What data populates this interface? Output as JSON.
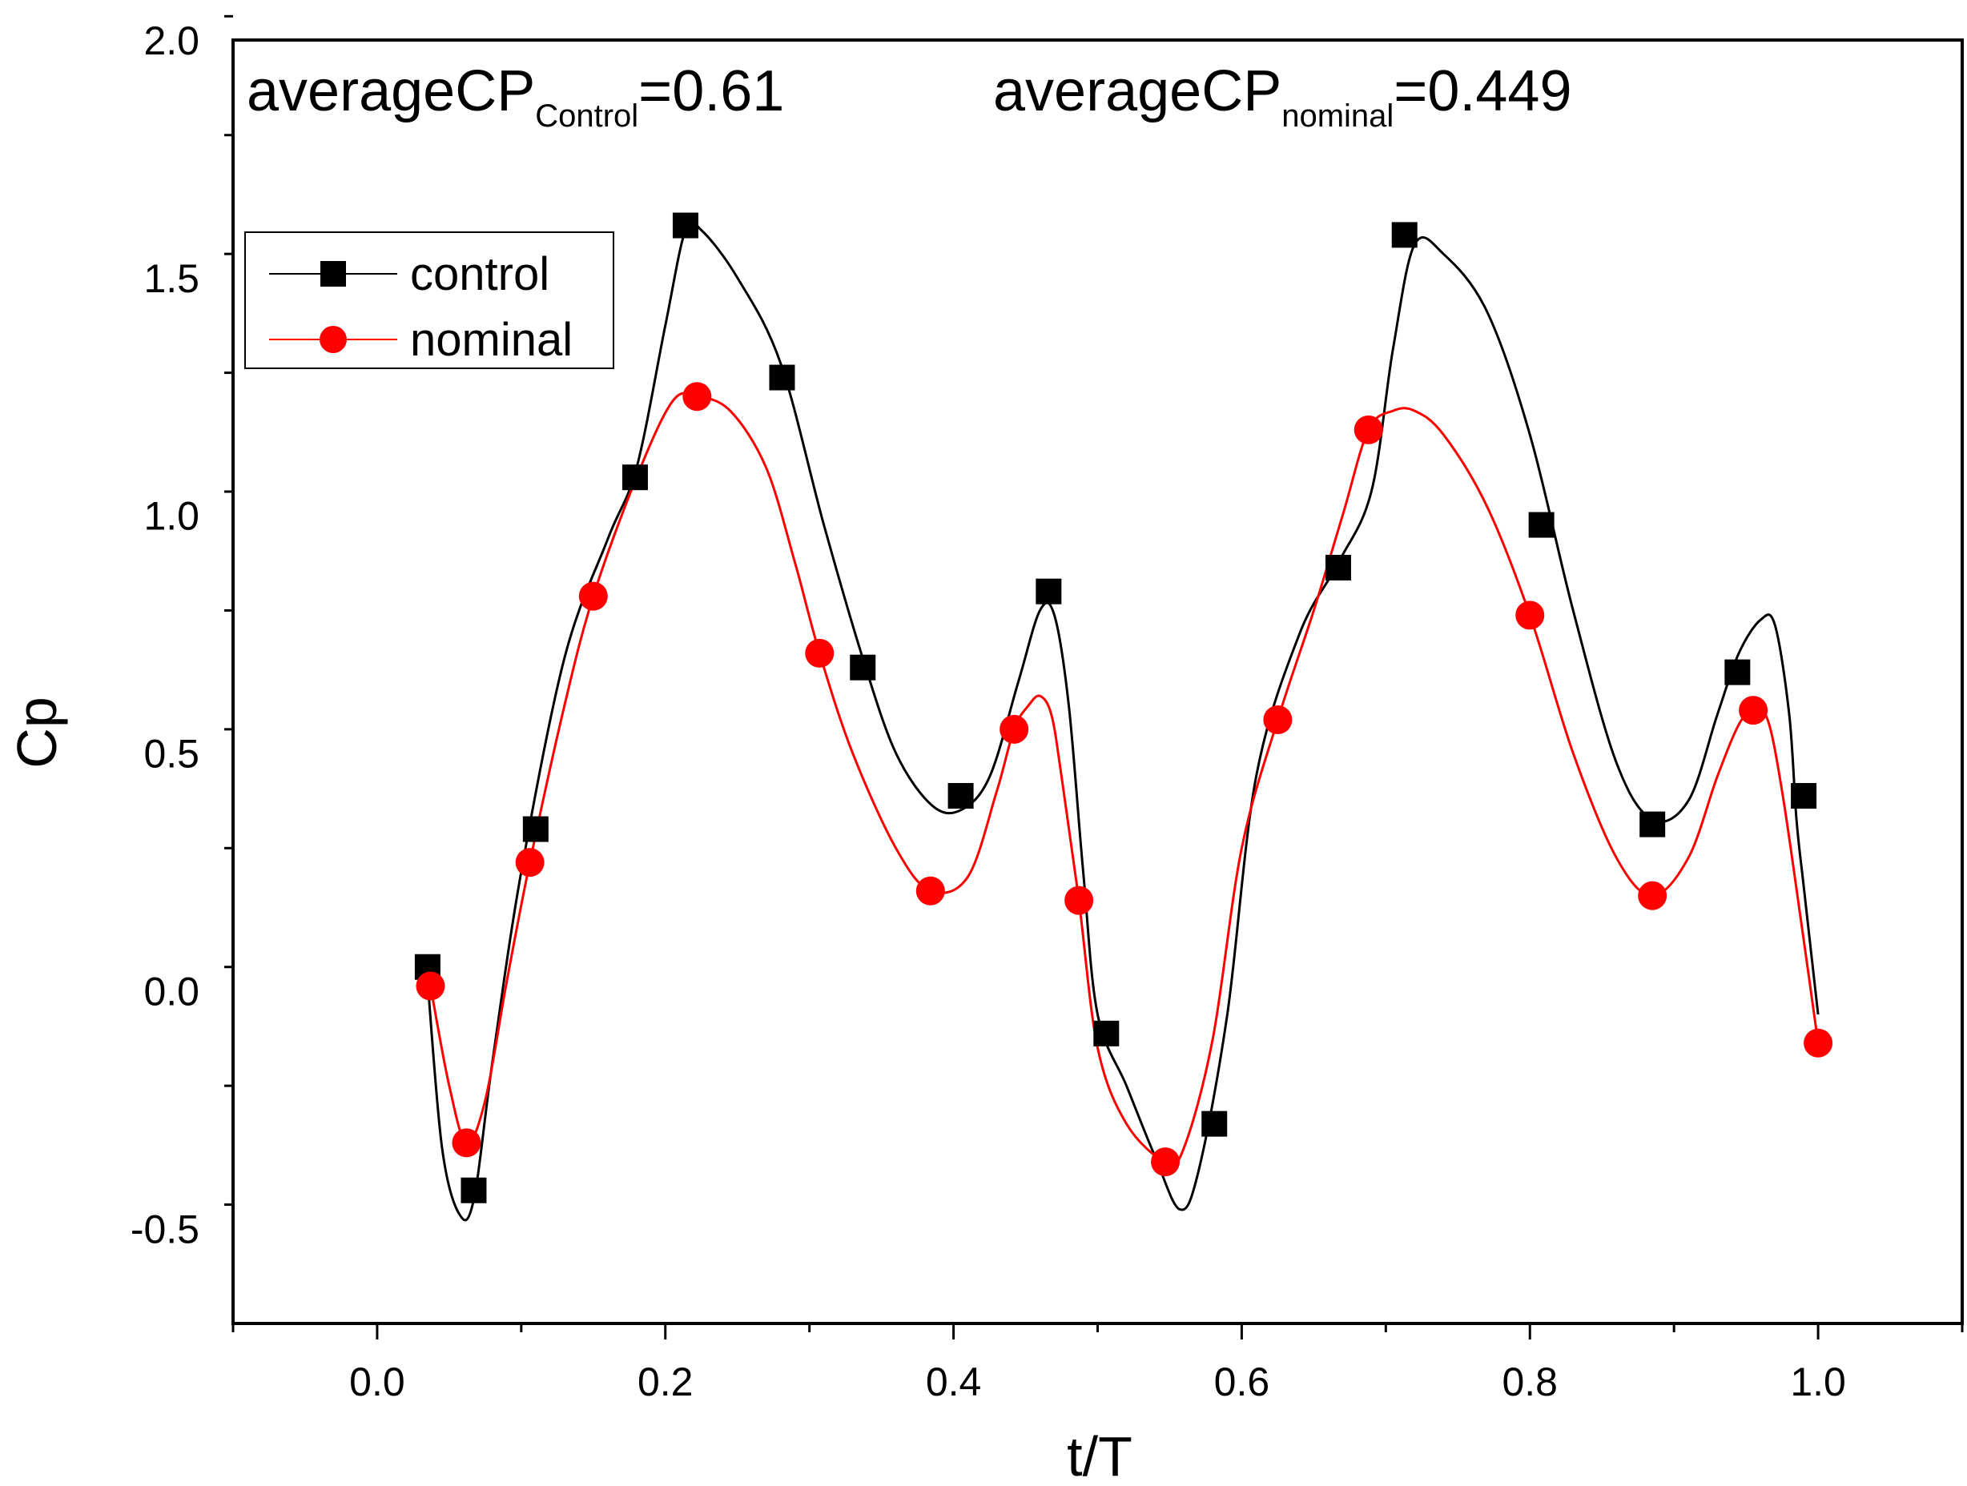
{
  "chart_data": {
    "type": "line",
    "xlabel": "t/T",
    "ylabel": "Cp",
    "xlim": [
      -0.1,
      1.1
    ],
    "ylim": [
      -0.7,
      2.0
    ],
    "xticks": [
      0.0,
      0.2,
      0.4,
      0.6,
      0.8,
      1.0
    ],
    "xtick_labels": [
      "0.0",
      "0.2",
      "0.4",
      "0.6",
      "0.8",
      "1.0"
    ],
    "yticks": [
      -0.5,
      0.0,
      0.5,
      1.0,
      1.5,
      2.0
    ],
    "ytick_labels": [
      "-0.5",
      "0.0",
      "0.5",
      "1.0",
      "1.5",
      "2.0"
    ],
    "grid": false,
    "legend_position": "upper-left",
    "annotations": [
      {
        "base": "averageCP",
        "sub": "Control",
        "suffix": "=0.61"
      },
      {
        "base": "averageCP",
        "sub": "nominal",
        "suffix": "=0.449"
      }
    ],
    "series": [
      {
        "name": "control",
        "color": "#000000",
        "marker": "square",
        "x": [
          0.035,
          0.067,
          0.11,
          0.179,
          0.214,
          0.281,
          0.337,
          0.405,
          0.466,
          0.506,
          0.581,
          0.667,
          0.713,
          0.808,
          0.885,
          0.944,
          0.99
        ],
        "y": [
          0.05,
          -0.42,
          0.34,
          1.08,
          1.61,
          1.29,
          0.68,
          0.41,
          0.84,
          -0.09,
          -0.28,
          0.89,
          1.59,
          0.98,
          0.35,
          0.67,
          0.41
        ],
        "curve_x": [
          0.035,
          0.045,
          0.057,
          0.067,
          0.08,
          0.1,
          0.13,
          0.16,
          0.18,
          0.2,
          0.214,
          0.225,
          0.25,
          0.28,
          0.31,
          0.337,
          0.36,
          0.385,
          0.405,
          0.425,
          0.445,
          0.46,
          0.47,
          0.48,
          0.49,
          0.5,
          0.52,
          0.54,
          0.557,
          0.57,
          0.59,
          0.61,
          0.64,
          0.667,
          0.69,
          0.705,
          0.72,
          0.74,
          0.77,
          0.8,
          0.83,
          0.86,
          0.885,
          0.91,
          0.93,
          0.945,
          0.96,
          0.97,
          0.98,
          0.985,
          0.99,
          1.0
        ],
        "curve_y": [
          0.02,
          -0.33,
          -0.47,
          -0.44,
          -0.15,
          0.25,
          0.7,
          0.95,
          1.1,
          1.4,
          1.6,
          1.6,
          1.5,
          1.32,
          0.98,
          0.7,
          0.5,
          0.39,
          0.38,
          0.45,
          0.65,
          0.8,
          0.79,
          0.6,
          0.25,
          -0.05,
          -0.2,
          -0.35,
          -0.46,
          -0.38,
          -0.05,
          0.45,
          0.75,
          0.9,
          1.05,
          1.35,
          1.57,
          1.55,
          1.43,
          1.17,
          0.8,
          0.48,
          0.36,
          0.4,
          0.58,
          0.71,
          0.78,
          0.77,
          0.58,
          0.36,
          0.22,
          -0.05
        ]
      },
      {
        "name": "nominal",
        "color": "#ff0000",
        "marker": "circle",
        "x": [
          0.037,
          0.062,
          0.106,
          0.15,
          0.222,
          0.307,
          0.384,
          0.442,
          0.487,
          0.547,
          0.625,
          0.688,
          0.8,
          0.885,
          0.955,
          1.0
        ],
        "y": [
          0.01,
          -0.32,
          0.27,
          0.83,
          1.25,
          0.71,
          0.21,
          0.55,
          0.19,
          -0.36,
          0.57,
          1.18,
          0.79,
          0.2,
          0.59,
          -0.11
        ],
        "curve_x": [
          0.037,
          0.05,
          0.062,
          0.075,
          0.09,
          0.106,
          0.13,
          0.15,
          0.18,
          0.205,
          0.222,
          0.245,
          0.27,
          0.29,
          0.307,
          0.33,
          0.36,
          0.384,
          0.41,
          0.43,
          0.442,
          0.452,
          0.46,
          0.468,
          0.475,
          0.487,
          0.5,
          0.52,
          0.547,
          0.56,
          0.58,
          0.6,
          0.625,
          0.65,
          0.67,
          0.688,
          0.705,
          0.72,
          0.74,
          0.77,
          0.8,
          0.83,
          0.86,
          0.885,
          0.91,
          0.93,
          0.945,
          0.955,
          0.965,
          0.975,
          0.988,
          1.0
        ],
        "curve_y": [
          0.01,
          -0.2,
          -0.32,
          -0.23,
          0.02,
          0.27,
          0.6,
          0.83,
          1.08,
          1.24,
          1.25,
          1.22,
          1.1,
          0.9,
          0.71,
          0.5,
          0.3,
          0.21,
          0.24,
          0.42,
          0.55,
          0.6,
          0.62,
          0.58,
          0.45,
          0.19,
          -0.12,
          -0.28,
          -0.36,
          -0.33,
          -0.1,
          0.3,
          0.57,
          0.8,
          1.0,
          1.18,
          1.22,
          1.22,
          1.17,
          1.02,
          0.79,
          0.5,
          0.28,
          0.2,
          0.28,
          0.45,
          0.56,
          0.59,
          0.57,
          0.42,
          0.15,
          -0.11
        ]
      }
    ]
  }
}
